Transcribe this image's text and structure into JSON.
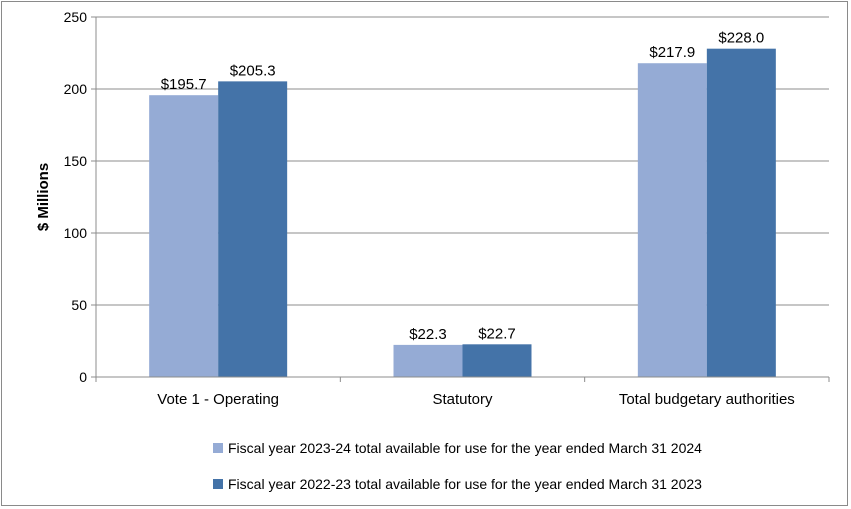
{
  "colors": {
    "series1": "#95abd5",
    "series2": "#4473a8",
    "grid": "#8c8c8c"
  },
  "chart_data": {
    "type": "bar",
    "title": "",
    "xlabel": "",
    "ylabel": "$ Millions",
    "ylim": [
      0,
      250
    ],
    "yticks": [
      0,
      50,
      100,
      150,
      200,
      250
    ],
    "categories": [
      "Vote 1 - Operating",
      "Statutory",
      "Total budgetary authorities"
    ],
    "series": [
      {
        "name": "Fiscal year 2023-24 total available for use for the year ended March 31 2024",
        "values": [
          195.7,
          22.3,
          217.9
        ],
        "labels": [
          "$195.7",
          "$22.3",
          "$217.9"
        ]
      },
      {
        "name": "Fiscal year 2022-23 total available for use for the year ended March 31 2023",
        "values": [
          205.3,
          22.7,
          228.0
        ],
        "labels": [
          "$205.3",
          "$22.7",
          "$228.0"
        ]
      }
    ],
    "legend_position": "bottom",
    "grid": true
  }
}
